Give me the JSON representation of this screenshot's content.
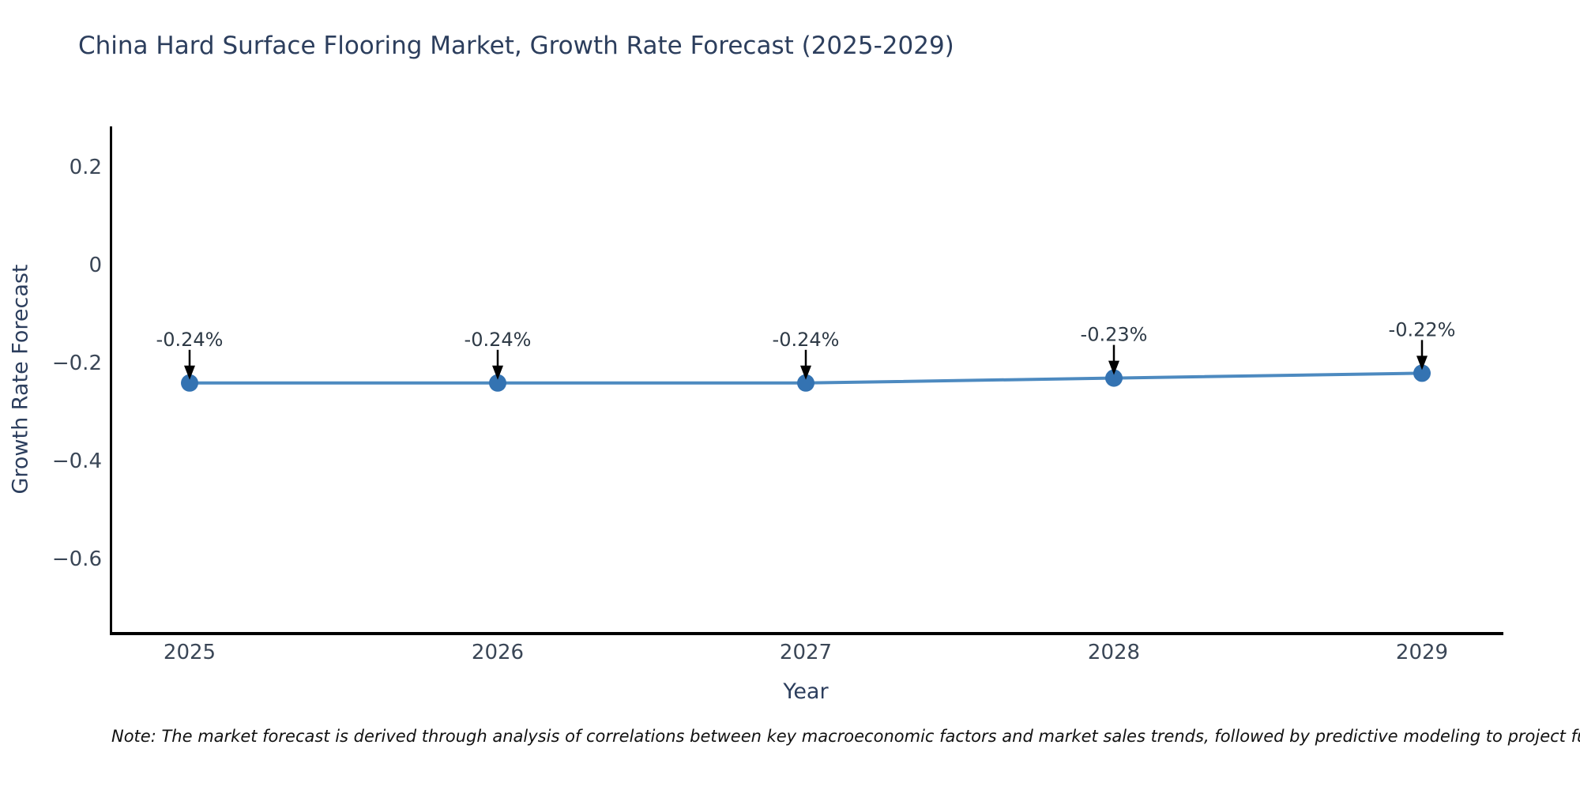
{
  "title": "China Hard Surface Flooring Market, Growth Rate Forecast (2025-2029)",
  "note": "Note: The market forecast is derived through analysis of correlations between key macroeconomic factors and market sales trends, followed by predictive modeling to project future sales.",
  "chart_data": {
    "type": "line",
    "title": "China Hard Surface Flooring Market, Growth Rate Forecast (2025-2029)",
    "xlabel": "Year",
    "ylabel": "Growth Rate Forecast",
    "x": [
      2025,
      2026,
      2027,
      2028,
      2029
    ],
    "xtick_labels": [
      "2025",
      "2026",
      "2027",
      "2028",
      "2029"
    ],
    "series": [
      {
        "name": "Growth Rate Forecast",
        "values": [
          -0.24,
          -0.24,
          -0.24,
          -0.23,
          -0.22
        ]
      }
    ],
    "point_labels": [
      "-0.24%",
      "-0.24%",
      "-0.24%",
      "-0.23%",
      "-0.22%"
    ],
    "yticks": [
      0.2,
      0,
      -0.2,
      -0.4,
      -0.6
    ],
    "ytick_labels": [
      "0.2",
      "0",
      "−0.2",
      "−0.4",
      "−0.6"
    ],
    "ylim": [
      -0.75,
      0.28
    ],
    "grid": false,
    "legend_position": "none",
    "colors": {
      "line": "#4d8ac0",
      "marker": "#3473b2",
      "annotation_text": "#2e3a46",
      "annotation_arrow": "#000000",
      "axis_line": "#000000",
      "tick_text": "#3a4656",
      "title_text": "#2c3e5d"
    }
  }
}
